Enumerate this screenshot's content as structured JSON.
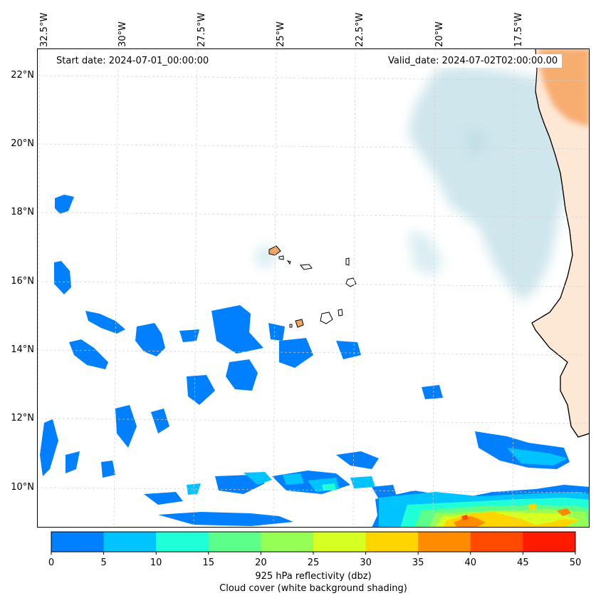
{
  "map": {
    "start_date": "Start date: 2024-07-01_00:00:00",
    "valid_date": "Valid_date: 2024-07-02T02:00:00.00",
    "lon_labels": [
      "32.5°W",
      "30°W",
      "27.5°W",
      "25°W",
      "22.5°W",
      "20°W",
      "17.5°W"
    ],
    "lat_labels": [
      "22°N",
      "20°N",
      "18°N",
      "16°N",
      "14°N",
      "12°N",
      "10°N"
    ],
    "colors": {
      "land": "#f6a35f",
      "cloud": "#a8d2de",
      "coastline": "#000000"
    }
  },
  "colorbar": {
    "ticks": [
      "0",
      "5",
      "10",
      "15",
      "20",
      "25",
      "30",
      "35",
      "40",
      "45",
      "50"
    ],
    "colors": [
      "#0080ff",
      "#00c4ff",
      "#1fffd8",
      "#5cff8a",
      "#96ff55",
      "#d6ff22",
      "#ffd500",
      "#ff8c00",
      "#ff4a00",
      "#ff1a00"
    ],
    "label_line1": "925 hPa reflectivity (dbz)",
    "label_line2": "Cloud cover (white background shading)"
  }
}
